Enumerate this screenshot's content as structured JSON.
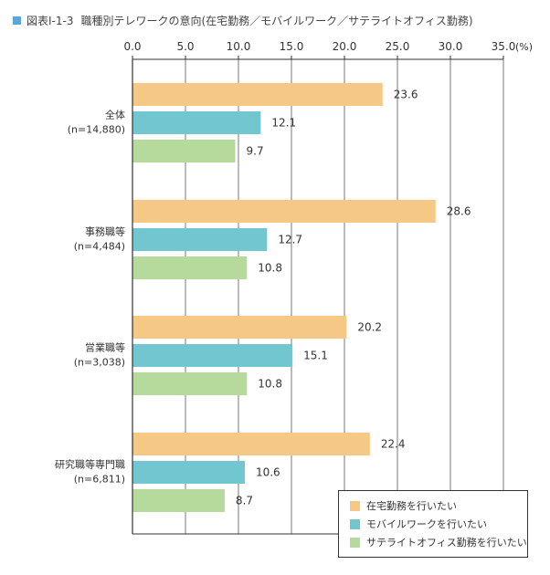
{
  "figure": {
    "number": "図表Ⅰ-1-3",
    "title": "職種別テレワークの意向(在宅勤務／モバイルワーク／サテライトオフィス勤務)"
  },
  "colors": {
    "home": "#f5c985",
    "mobile": "#72c6cf",
    "satellite": "#b6da9c",
    "title_marker": "#5aa8d8",
    "axis": "#333333"
  },
  "chart_data": {
    "type": "bar",
    "orientation": "horizontal",
    "categories": [
      {
        "name": "全体",
        "n": "(n=14,880)"
      },
      {
        "name": "事務職等",
        "n": "(n=4,484)"
      },
      {
        "name": "営業職等",
        "n": "(n=3,038)"
      },
      {
        "name": "研究職等専門職",
        "n": "(n=6,811)"
      }
    ],
    "series": [
      {
        "name": "在宅勤務を行いたい",
        "values": [
          23.6,
          28.6,
          20.2,
          22.4
        ]
      },
      {
        "name": "モバイルワークを行いたい",
        "values": [
          12.1,
          12.7,
          15.1,
          10.6
        ]
      },
      {
        "name": "サテライトオフィス勤務を行いたい",
        "values": [
          9.7,
          10.8,
          10.8,
          8.7
        ]
      }
    ],
    "xlim": [
      0,
      35
    ],
    "x_ticks": [
      "0.0",
      "5.0",
      "10.0",
      "15.0",
      "20.0",
      "25.0",
      "30.0",
      "35.0"
    ],
    "x_unit": "(%)",
    "grid": "vertical",
    "legend_position": "bottom-right"
  }
}
